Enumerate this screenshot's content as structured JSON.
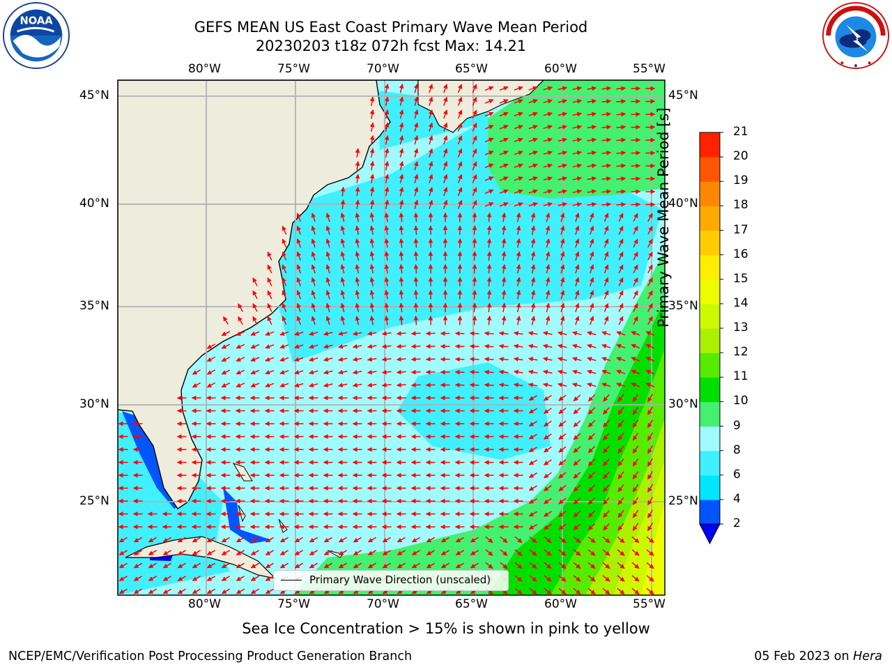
{
  "header": {
    "title_line1": "GEFS MEAN US East Coast Primary Wave Mean Period",
    "title_line2": "20230203 t18z 072h fcst   Max: 14.21"
  },
  "logos": {
    "left": {
      "icon": "noaa-logo-icon",
      "text": "NOAA"
    },
    "right": {
      "icon": "nws-logo-icon",
      "text": "NATIONAL WEATHER SERVICE"
    }
  },
  "map": {
    "lon_labels": [
      "80°W",
      "75°W",
      "70°W",
      "65°W",
      "60°W",
      "55°W"
    ],
    "lat_labels": [
      "45°N",
      "40°N",
      "35°N",
      "30°N",
      "25°N"
    ],
    "extent": {
      "lon_min": -84.9,
      "lon_max": -54.3,
      "lat_min": 20.5,
      "lat_max": 46.0
    },
    "legend_label": "Primary Wave Direction (unscaled)",
    "arrow_color": "#ff0000",
    "land_color": "#eeecdc",
    "grid_color": "#b0b0b0"
  },
  "colorbar": {
    "label": "Primary Wave Mean Period [s]",
    "ticks": [
      "2",
      "4",
      "6",
      "8",
      "9",
      "10",
      "11",
      "12",
      "13",
      "14",
      "15",
      "16",
      "17",
      "18",
      "19",
      "20",
      "21"
    ],
    "colors": [
      "#0055ff",
      "#00e6ff",
      "#40f0ff",
      "#a0fbff",
      "#44f070",
      "#00e000",
      "#55ec00",
      "#aaf000",
      "#ccf800",
      "#eefc00",
      "#ffee00",
      "#ffcc00",
      "#ffaa00",
      "#ff8800",
      "#ff5500",
      "#ff2200"
    ],
    "under_color": "#0000ff"
  },
  "notes": {
    "sea_ice": "Sea Ice Concentration > 15% is shown in pink to yellow"
  },
  "footer": {
    "left": "NCEP/EMC/Verification Post Processing Product Generation Branch",
    "date": "05 Feb 2023 on",
    "host": "Hera"
  }
}
